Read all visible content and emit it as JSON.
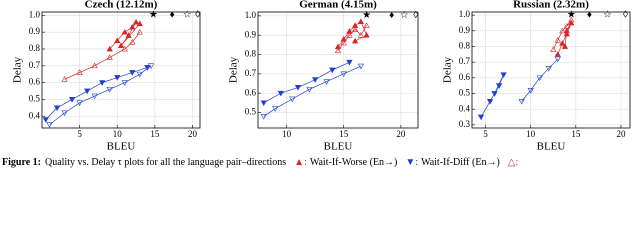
{
  "chart_data": [
    {
      "type": "line",
      "title": "Czech (12.12m)",
      "x_label": "BLEU",
      "y_label": "Delay",
      "xlim": [
        0,
        21
      ],
      "ylim": [
        0.33,
        1.02
      ],
      "xticks": [
        5,
        10,
        15,
        20
      ],
      "yticks": [
        0.4,
        0.5,
        0.6,
        0.7,
        0.8,
        0.9,
        {
          "value": 1,
          "label": "1.0"
        }
      ],
      "grid": true,
      "series": [
        {
          "color": "#d62728",
          "marker": "triangle-up-filled",
          "x": [
            9,
            10,
            11,
            12,
            12.5,
            11.5,
            10.5,
            13
          ],
          "values": [
            0.8,
            0.85,
            0.9,
            0.93,
            0.96,
            0.88,
            0.82,
            0.95
          ]
        },
        {
          "color": "#d62728",
          "marker": "triangle-up-open",
          "x": [
            3,
            5,
            7,
            9,
            11,
            12,
            13
          ],
          "values": [
            0.62,
            0.66,
            0.7,
            0.75,
            0.8,
            0.84,
            0.9
          ]
        },
        {
          "color": "#1f3fd0",
          "marker": "triangle-down-filled",
          "x": [
            0.5,
            2,
            4,
            6,
            8,
            10,
            12,
            14
          ],
          "values": [
            0.38,
            0.45,
            0.5,
            0.55,
            0.6,
            0.63,
            0.66,
            0.69
          ]
        },
        {
          "color": "#1f3fd0",
          "marker": "triangle-down-open",
          "x": [
            1,
            3,
            5,
            7,
            9,
            11,
            13,
            14.5
          ],
          "values": [
            0.35,
            0.42,
            0.48,
            0.52,
            0.56,
            0.6,
            0.65,
            0.7
          ]
        }
      ],
      "references": {
        "symbols": [
          "★",
          "♦",
          "☆",
          "◊"
        ],
        "x": [
          14.8,
          17.3,
          19.3,
          20.7
        ],
        "values": [
          1,
          1,
          1,
          1
        ]
      }
    },
    {
      "type": "line",
      "title": "German (4.15m)",
      "x_label": "BLEU",
      "y_label": "Delay",
      "xlim": [
        7.5,
        21.5
      ],
      "ylim": [
        0.42,
        1.02
      ],
      "xticks": [
        10,
        15,
        20
      ],
      "yticks": [
        0.5,
        0.6,
        0.7,
        0.8,
        0.9,
        {
          "value": 1,
          "label": "1.0"
        }
      ],
      "grid": true,
      "series": [
        {
          "color": "#d62728",
          "marker": "triangle-up-filled",
          "x": [
            14.5,
            15,
            15.5,
            16,
            16.5,
            17,
            16
          ],
          "values": [
            0.84,
            0.88,
            0.92,
            0.95,
            0.97,
            0.9,
            0.87
          ]
        },
        {
          "color": "#d62728",
          "marker": "triangle-up-open",
          "x": [
            14.5,
            15,
            15.5,
            16,
            16.5,
            17
          ],
          "values": [
            0.82,
            0.86,
            0.9,
            0.93,
            0.9,
            0.95
          ]
        },
        {
          "color": "#1f3fd0",
          "marker": "triangle-down-filled",
          "x": [
            8,
            9.5,
            11,
            12.5,
            14,
            15.5
          ],
          "values": [
            0.55,
            0.6,
            0.63,
            0.67,
            0.72,
            0.76
          ]
        },
        {
          "color": "#1f3fd0",
          "marker": "triangle-down-open",
          "x": [
            8,
            9,
            10.5,
            12,
            13.5,
            15,
            16.5
          ],
          "values": [
            0.48,
            0.52,
            0.57,
            0.62,
            0.66,
            0.7,
            0.74
          ]
        }
      ],
      "references": {
        "symbols": [
          "★",
          "♦",
          "☆",
          "◊"
        ],
        "x": [
          17,
          19.2,
          20.3,
          21.3
        ],
        "values": [
          1,
          1,
          1,
          1
        ]
      }
    },
    {
      "type": "line",
      "title": "Russian (2.32m)",
      "x_label": "BLEU",
      "y_label": "Delay",
      "xlim": [
        3.5,
        21
      ],
      "ylim": [
        0.28,
        1.02
      ],
      "xticks": [
        5,
        10,
        15,
        20
      ],
      "yticks": [
        0.3,
        0.4,
        0.5,
        0.6,
        0.7,
        0.8,
        0.9,
        {
          "value": 1,
          "label": "1.0"
        }
      ],
      "grid": true,
      "series": [
        {
          "color": "#d62728",
          "marker": "triangle-up-filled",
          "x": [
            13,
            13.5,
            14,
            14.5,
            14,
            13.8
          ],
          "values": [
            0.75,
            0.82,
            0.88,
            0.95,
            0.9,
            0.8
          ]
        },
        {
          "color": "#d62728",
          "marker": "triangle-up-open",
          "x": [
            12.5,
            13,
            13.5,
            14,
            14.5
          ],
          "values": [
            0.78,
            0.84,
            0.9,
            0.93,
            0.97
          ]
        },
        {
          "color": "#1f3fd0",
          "marker": "triangle-down-filled",
          "x": [
            4.5,
            5.5,
            6.5,
            7,
            6
          ],
          "values": [
            0.35,
            0.45,
            0.55,
            0.62,
            0.5
          ]
        },
        {
          "color": "#1f3fd0",
          "marker": "triangle-down-open",
          "x": [
            9,
            10,
            11,
            12,
            13
          ],
          "values": [
            0.45,
            0.52,
            0.6,
            0.66,
            0.72
          ]
        }
      ],
      "references": {
        "symbols": [
          "★",
          "♦",
          "☆",
          "◊"
        ],
        "x": [
          14.5,
          16.5,
          18.5,
          20.5
        ],
        "values": [
          1,
          1,
          1,
          1
        ]
      }
    }
  ],
  "caption": {
    "label": "Figure 1:",
    "text": "Quality vs. Delay τ plots for all the language pair–directions",
    "legend": [
      {
        "symbol": "▲:",
        "color": "#d62728",
        "text": "Wait-If-Worse (En→)"
      },
      {
        "symbol": "▼:",
        "color": "#1f3fd0",
        "text": "Wait-If-Diff (En→)"
      },
      {
        "symbol": "△:",
        "color": "#d62728"
      }
    ]
  }
}
